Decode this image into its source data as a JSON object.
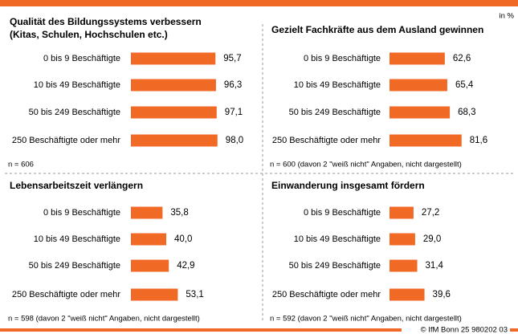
{
  "unit": "in %",
  "source": "© IfM Bonn 25 980202 03",
  "chart_data": [
    {
      "type": "bar",
      "orientation": "horizontal",
      "color": "#f06a25",
      "title": [
        "Qualität des Bildungssystems verbessern",
        "(Kitas, Schulen, Hochschulen etc.)"
      ],
      "categories": [
        "0 bis 9 Beschäftigte",
        "10 bis 49 Beschäftigte",
        "50 bis 249 Beschäftigte",
        "250 Beschäftigte oder mehr"
      ],
      "values": [
        95.7,
        96.3,
        97.1,
        98.0
      ],
      "value_labels": [
        "95,7",
        "96,3",
        "97,1",
        "98,0"
      ],
      "note": "n = 606"
    },
    {
      "type": "bar",
      "orientation": "horizontal",
      "color": "#f06a25",
      "title": [
        "Gezielt Fachkräfte aus dem Ausland gewinnen"
      ],
      "categories": [
        "0 bis 9 Beschäftigte",
        "10 bis 49 Beschäftigte",
        "50 bis 249 Beschäftigte",
        "250 Beschäftigte oder mehr"
      ],
      "values": [
        62.6,
        65.4,
        68.3,
        81.6
      ],
      "value_labels": [
        "62,6",
        "65,4",
        "68,3",
        "81,6"
      ],
      "note": "n = 600 (davon 2 \"weiß nicht\" Angaben, nicht dargestellt)"
    },
    {
      "type": "bar",
      "orientation": "horizontal",
      "color": "#f06a25",
      "title": [
        "Lebensarbeitszeit verlängern"
      ],
      "categories": [
        "0 bis 9 Beschäftigte",
        "10 bis 49 Beschäftigte",
        "50 bis 249 Beschäftigte",
        "250 Beschäftigte oder mehr"
      ],
      "values": [
        35.8,
        40.0,
        42.9,
        53.1
      ],
      "value_labels": [
        "35,8",
        "40,0",
        "42,9",
        "53,1"
      ],
      "note": "n = 598 (davon 2 \"weiß nicht\" Angaben, nicht dargestellt)"
    },
    {
      "type": "bar",
      "orientation": "horizontal",
      "color": "#f06a25",
      "title": [
        "Einwanderung insgesamt fördern"
      ],
      "categories": [
        "0 bis 9 Beschäftigte",
        "10 bis 49 Beschäftigte",
        "50 bis 249 Beschäftigte",
        "250 Beschäftigte oder mehr"
      ],
      "values": [
        27.2,
        29.0,
        31.4,
        39.6
      ],
      "value_labels": [
        "27,2",
        "29,0",
        "31,4",
        "39,6"
      ],
      "note": "n = 592 (davon 2 \"weiß nicht\" Angaben, nicht dargestellt)"
    }
  ]
}
